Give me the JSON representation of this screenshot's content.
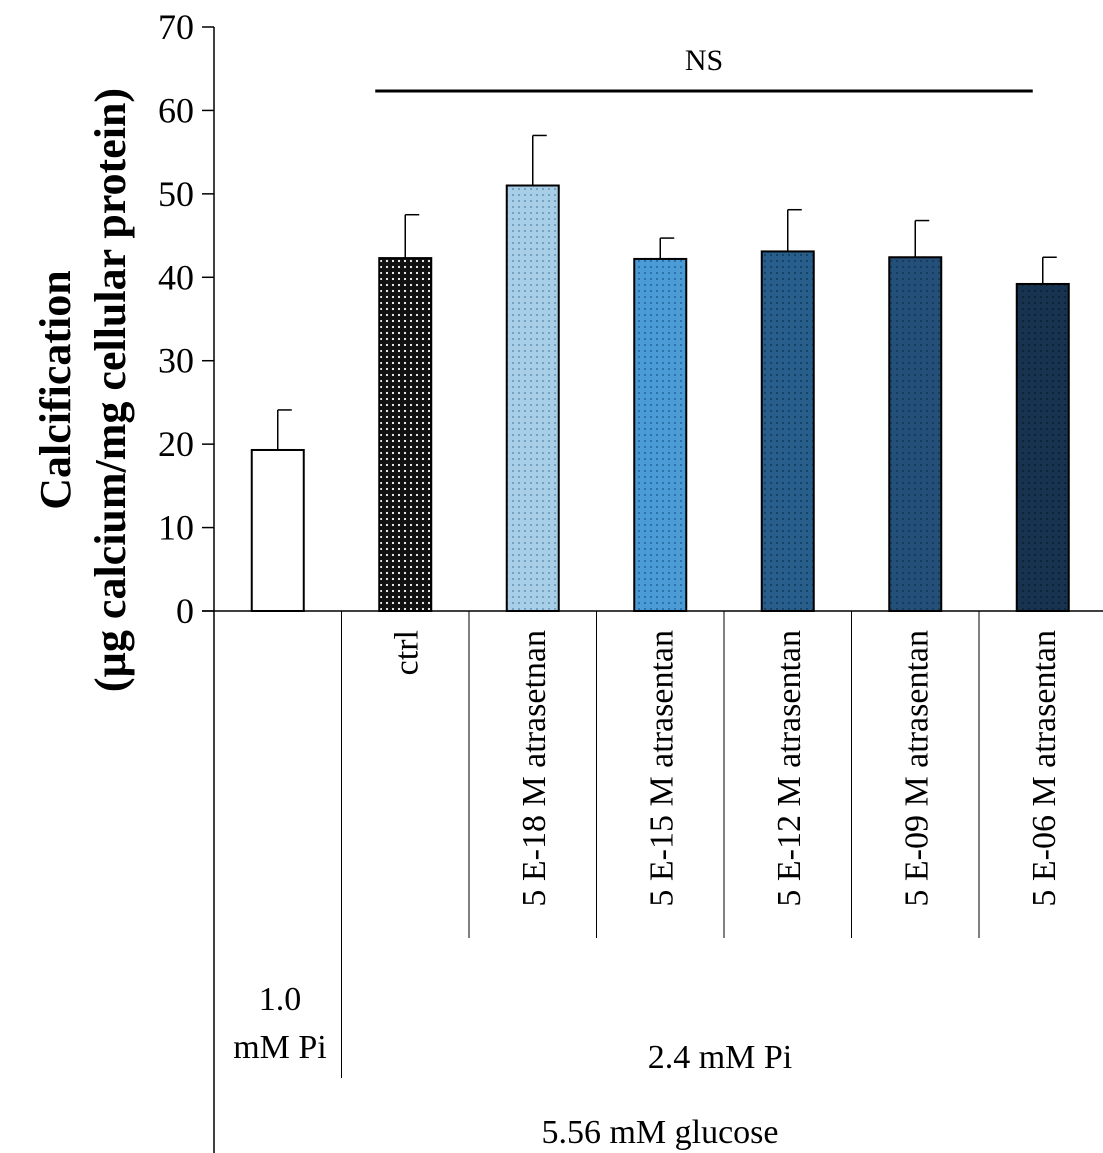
{
  "chart_data": {
    "type": "bar",
    "ylabel_line1": "Calcification",
    "ylabel_line2": "(µg calcium/mg cellular protein)",
    "ylim": [
      0,
      70
    ],
    "yticks": [
      0,
      10,
      20,
      30,
      40,
      50,
      60,
      70
    ],
    "grid": false,
    "categories": [
      "",
      "ctrl",
      "5 E-18 M atrasetnan",
      "5 E-15 M atrasentan",
      "5 E-12 M atrasentan",
      "5 E-09 M atrasentan",
      "5 E-06 M atrasentan"
    ],
    "values": [
      19.3,
      42.3,
      51.0,
      42.2,
      43.1,
      42.4,
      39.2
    ],
    "errors": [
      4.8,
      5.2,
      6.0,
      2.5,
      5.0,
      4.4,
      3.2
    ],
    "bar_colors": [
      "#111111",
      "#111111",
      "#a9cfe8",
      "#4a9bd6",
      "#275e8c",
      "#234f78",
      "#17334f"
    ],
    "dot_colors": [
      "#ffffff",
      "#ffffff",
      "#6f9dbd",
      "#2a6ea5",
      "#16405f",
      "#143b5a",
      "#0c2236"
    ],
    "group_labels": {
      "pi_low_line1": "1.0",
      "pi_low_line2": "mM Pi",
      "pi_high": "2.4 mM Pi",
      "glucose": "5.56 mM glucose"
    },
    "significance": {
      "label": "NS",
      "from_index": 1,
      "to_index": 6
    }
  }
}
